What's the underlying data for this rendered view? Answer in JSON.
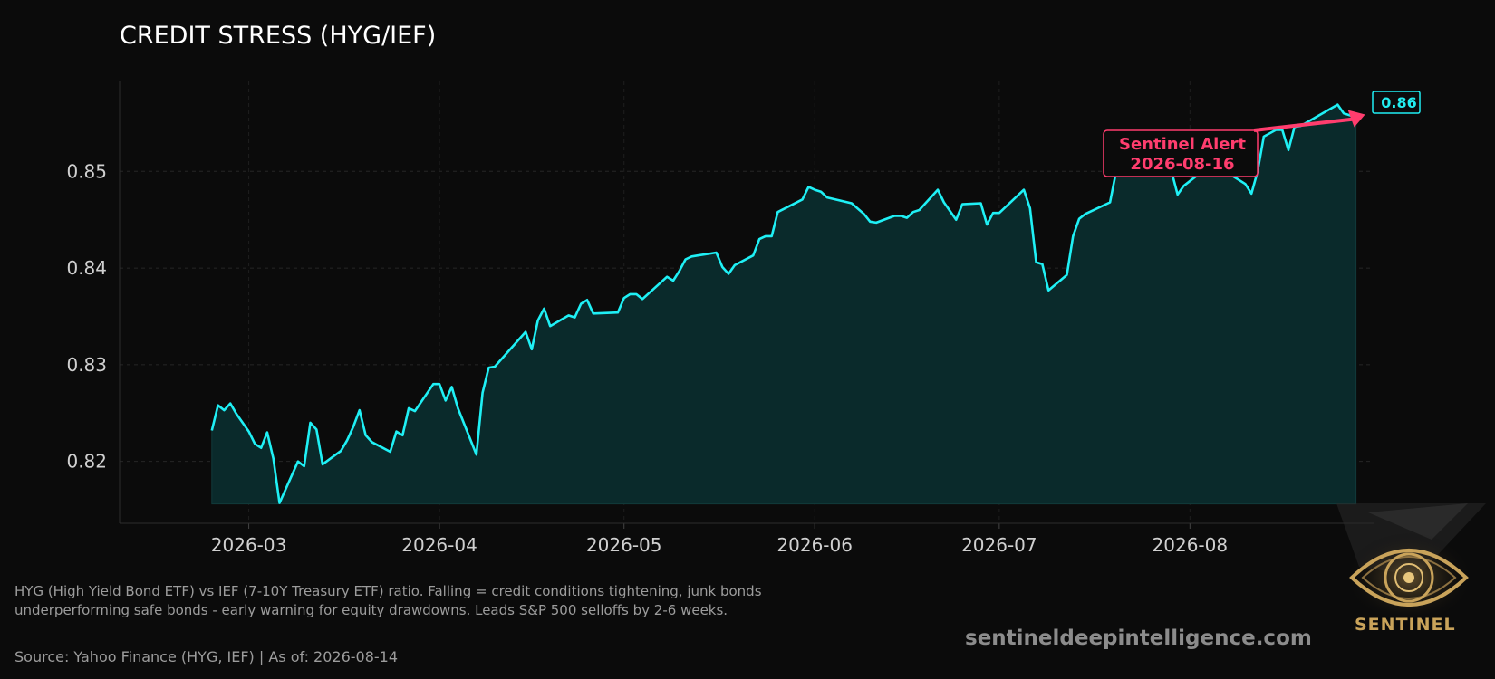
{
  "chart_data": {
    "type": "area",
    "title": "CREDIT STRESS (HYG/IEF)",
    "xlabel": "",
    "ylabel": "",
    "x_ticks": [
      "2026-03",
      "2026-04",
      "2026-05",
      "2026-06",
      "2026-07",
      "2026-08"
    ],
    "y_ticks": [
      "0.82",
      "0.83",
      "0.84",
      "0.85"
    ],
    "y_tick_values": [
      0.82,
      0.83,
      0.84,
      0.85
    ],
    "xlim": [
      "2026-02-08",
      "2026-08-31"
    ],
    "ylim": [
      0.8136,
      0.8593
    ],
    "fill_baseline": 0.8156,
    "grid": true,
    "series": [
      {
        "color": "#1ff0f5",
        "points": [
          [
            "2026-02-23",
            0.8232
          ],
          [
            "2026-02-24",
            0.8258
          ],
          [
            "2026-02-25",
            0.8253
          ],
          [
            "2026-02-26",
            0.826
          ],
          [
            "2026-02-27",
            0.8249
          ],
          [
            "2026-03-01",
            0.8231
          ],
          [
            "2026-03-02",
            0.8218
          ],
          [
            "2026-03-03",
            0.8214
          ],
          [
            "2026-03-04",
            0.823
          ],
          [
            "2026-03-05",
            0.8203
          ],
          [
            "2026-03-06",
            0.8157
          ],
          [
            "2026-03-09",
            0.82
          ],
          [
            "2026-03-10",
            0.8195
          ],
          [
            "2026-03-11",
            0.824
          ],
          [
            "2026-03-12",
            0.8233
          ],
          [
            "2026-03-13",
            0.8197
          ],
          [
            "2026-03-16",
            0.8211
          ],
          [
            "2026-03-17",
            0.8222
          ],
          [
            "2026-03-18",
            0.8236
          ],
          [
            "2026-03-19",
            0.8253
          ],
          [
            "2026-03-20",
            0.8227
          ],
          [
            "2026-03-21",
            0.822
          ],
          [
            "2026-03-24",
            0.821
          ],
          [
            "2026-03-25",
            0.8231
          ],
          [
            "2026-03-26",
            0.8227
          ],
          [
            "2026-03-27",
            0.8255
          ],
          [
            "2026-03-28",
            0.8252
          ],
          [
            "2026-03-31",
            0.828
          ],
          [
            "2026-04-01",
            0.828
          ],
          [
            "2026-04-02",
            0.8263
          ],
          [
            "2026-04-03",
            0.8277
          ],
          [
            "2026-04-04",
            0.8255
          ],
          [
            "2026-04-07",
            0.8207
          ],
          [
            "2026-04-08",
            0.8271
          ],
          [
            "2026-04-09",
            0.8297
          ],
          [
            "2026-04-10",
            0.8298
          ],
          [
            "2026-04-15",
            0.8334
          ],
          [
            "2026-04-16",
            0.8316
          ],
          [
            "2026-04-17",
            0.8346
          ],
          [
            "2026-04-18",
            0.8358
          ],
          [
            "2026-04-19",
            0.834
          ],
          [
            "2026-04-22",
            0.8351
          ],
          [
            "2026-04-23",
            0.8349
          ],
          [
            "2026-04-24",
            0.8363
          ],
          [
            "2026-04-25",
            0.8367
          ],
          [
            "2026-04-26",
            0.8353
          ],
          [
            "2026-04-30",
            0.8354
          ],
          [
            "2026-05-01",
            0.8369
          ],
          [
            "2026-05-02",
            0.8373
          ],
          [
            "2026-05-03",
            0.8373
          ],
          [
            "2026-05-04",
            0.8368
          ],
          [
            "2026-05-08",
            0.8391
          ],
          [
            "2026-05-09",
            0.8387
          ],
          [
            "2026-05-10",
            0.8397
          ],
          [
            "2026-05-11",
            0.8409
          ],
          [
            "2026-05-12",
            0.8412
          ],
          [
            "2026-05-13",
            0.8413
          ],
          [
            "2026-05-15",
            0.8415
          ],
          [
            "2026-05-16",
            0.8416
          ],
          [
            "2026-05-17",
            0.8401
          ],
          [
            "2026-05-18",
            0.8394
          ],
          [
            "2026-05-19",
            0.8403
          ],
          [
            "2026-05-22",
            0.8413
          ],
          [
            "2026-05-23",
            0.843
          ],
          [
            "2026-05-24",
            0.8433
          ],
          [
            "2026-05-25",
            0.8433
          ],
          [
            "2026-05-26",
            0.8458
          ],
          [
            "2026-05-30",
            0.8471
          ],
          [
            "2026-05-31",
            0.8484
          ],
          [
            "2026-06-01",
            0.8481
          ],
          [
            "2026-06-02",
            0.8479
          ],
          [
            "2026-06-03",
            0.8473
          ],
          [
            "2026-06-07",
            0.8467
          ],
          [
            "2026-06-09",
            0.8456
          ],
          [
            "2026-06-10",
            0.8448
          ],
          [
            "2026-06-11",
            0.8447
          ],
          [
            "2026-06-14",
            0.8454
          ],
          [
            "2026-06-15",
            0.8454
          ],
          [
            "2026-06-16",
            0.8452
          ],
          [
            "2026-06-17",
            0.8458
          ],
          [
            "2026-06-18",
            0.846
          ],
          [
            "2026-06-21",
            0.8481
          ],
          [
            "2026-06-22",
            0.8468
          ],
          [
            "2026-06-24",
            0.845
          ],
          [
            "2026-06-25",
            0.8466
          ],
          [
            "2026-06-28",
            0.8467
          ],
          [
            "2026-06-29",
            0.8445
          ],
          [
            "2026-06-30",
            0.8457
          ],
          [
            "2026-07-01",
            0.8457
          ],
          [
            "2026-07-05",
            0.8481
          ],
          [
            "2026-07-06",
            0.8462
          ],
          [
            "2026-07-07",
            0.8406
          ],
          [
            "2026-07-08",
            0.8404
          ],
          [
            "2026-07-09",
            0.8377
          ],
          [
            "2026-07-12",
            0.8393
          ],
          [
            "2026-07-13",
            0.8433
          ],
          [
            "2026-07-14",
            0.8451
          ],
          [
            "2026-07-15",
            0.8456
          ],
          [
            "2026-07-19",
            0.8468
          ],
          [
            "2026-07-20",
            0.85
          ],
          [
            "2026-07-21",
            0.8507
          ],
          [
            "2026-07-22",
            0.8499
          ],
          [
            "2026-07-25",
            0.8506
          ],
          [
            "2026-07-26",
            0.851
          ],
          [
            "2026-07-27",
            0.851
          ],
          [
            "2026-07-28",
            0.85
          ],
          [
            "2026-07-29",
            0.85
          ],
          [
            "2026-07-30",
            0.8476
          ],
          [
            "2026-07-31",
            0.8485
          ],
          [
            "2026-08-03",
            0.85
          ],
          [
            "2026-08-08",
            0.8495
          ],
          [
            "2026-08-10",
            0.8487
          ],
          [
            "2026-08-11",
            0.8477
          ],
          [
            "2026-08-12",
            0.85
          ],
          [
            "2026-08-13",
            0.8536
          ],
          [
            "2026-08-15",
            0.8543
          ],
          [
            "2026-08-16",
            0.8543
          ],
          [
            "2026-08-17",
            0.8522
          ],
          [
            "2026-08-18",
            0.8546
          ],
          [
            "2026-08-19",
            0.8547
          ],
          [
            "2026-08-25",
            0.8569
          ],
          [
            "2026-08-26",
            0.856
          ],
          [
            "2026-08-28",
            0.8556
          ]
        ]
      }
    ],
    "annotation": {
      "label_line1": "Sentinel Alert",
      "label_line2": "2026-08-16",
      "color": "#ff3d6e"
    },
    "last_value_badge": "0.86"
  },
  "footer": {
    "description": "HYG (High Yield Bond ETF) vs IEF (7-10Y Treasury ETF) ratio. Falling = credit conditions tightening, junk bonds underperforming safe bonds - early warning for equity drawdowns. Leads S&P 500 selloffs by 2-6 weeks.",
    "source": "Source: Yahoo Finance (HYG, IEF) | As of: 2026-08-14",
    "website": "sentineldeepintelligence.com",
    "logo_text": "SENTINEL"
  },
  "colors": {
    "background": "#0b0b0b",
    "line": "#1ff0f5",
    "fill": "#0a2a2b",
    "alert": "#ff3d6e",
    "logo_gold": "#c9a35a"
  }
}
